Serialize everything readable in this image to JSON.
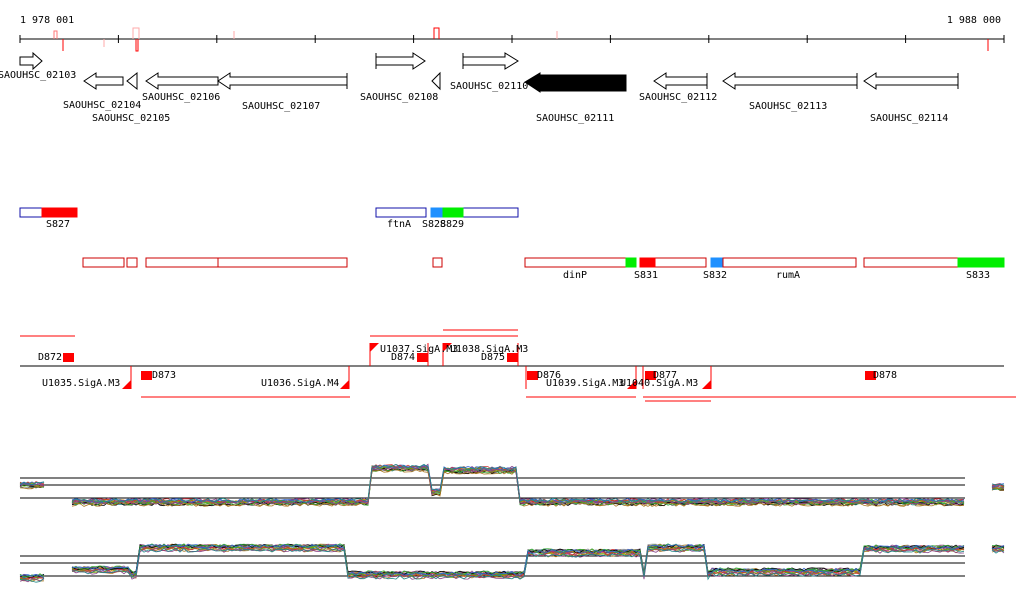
{
  "coordinates": {
    "start": "1 978 001",
    "end": "1 988 000"
  },
  "colors": {
    "red": "#ff0000",
    "green": "#00ee00",
    "blue": "#1e90ff",
    "outline_red": "#cc0000",
    "outline_blue": "#1010aa",
    "black": "#000000"
  },
  "genes": [
    {
      "label": "SAOUHSC_02103",
      "strand": "+"
    },
    {
      "label": "SAOUHSC_02104",
      "strand": "-"
    },
    {
      "label": "SAOUHSC_02105",
      "strand": "-"
    },
    {
      "label": "SAOUHSC_02106",
      "strand": "-"
    },
    {
      "label": "SAOUHSC_02107",
      "strand": "-"
    },
    {
      "label": "SAOUHSC_02108",
      "strand": "+"
    },
    {
      "label": "SAOUHSC_02110",
      "strand": "+"
    },
    {
      "label": "SAOUHSC_02111",
      "strand": "-",
      "highlighted": true
    },
    {
      "label": "SAOUHSC_02112",
      "strand": "-"
    },
    {
      "label": "SAOUHSC_02113",
      "strand": "-"
    },
    {
      "label": "SAOUHSC_02114",
      "strand": "-"
    }
  ],
  "segments_plus": [
    "S827",
    "ftnA",
    "S828",
    "S829"
  ],
  "segments_minus": [
    "dinP",
    "S831",
    "S832",
    "rumA",
    "S833"
  ],
  "features": [
    "D872",
    "U1035.SigA.M3",
    "D873",
    "U1036.SigA.M4",
    "U1037.SigA.M3",
    "D874",
    "U1038.SigA.M3",
    "D875",
    "D876",
    "U1039.SigA.M3",
    "U1040.SigA.M3",
    "D877",
    "D878"
  ]
}
